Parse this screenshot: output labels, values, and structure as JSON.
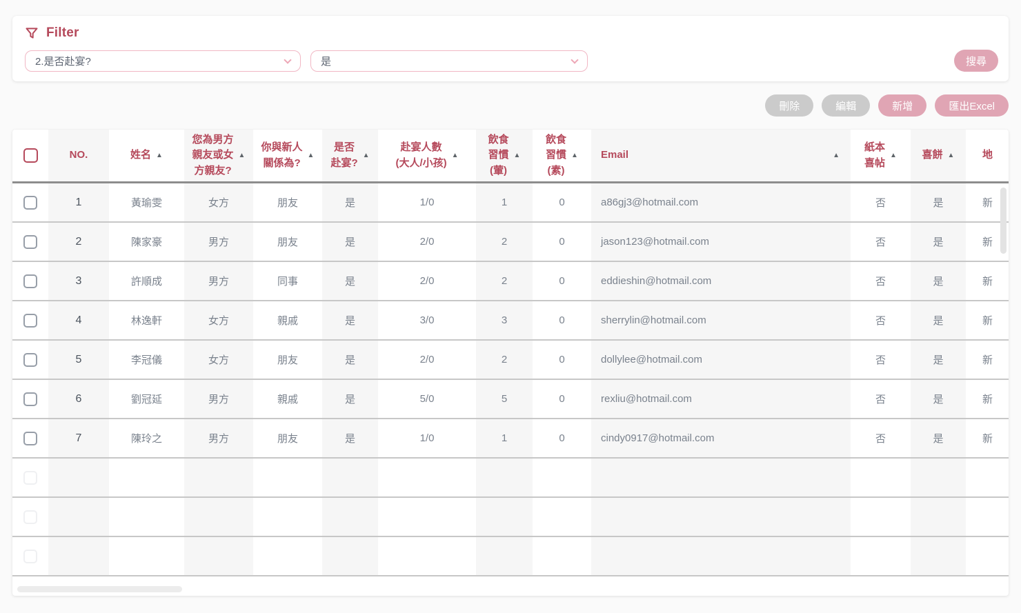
{
  "accent_colors": {
    "crimson": "#b5495b",
    "pink_button": "#e0a5b4",
    "pink_border": "#f1b7c4",
    "gray_button": "#cbcbcb"
  },
  "icons": {
    "filter": "funnel-icon",
    "sort_asc": "▲",
    "chevron": "chevron-down-icon"
  },
  "filter": {
    "title": "Filter",
    "field_select": {
      "value": "2.是否赴宴?"
    },
    "value_select": {
      "value": "是"
    },
    "search_label": "搜尋"
  },
  "toolbar": {
    "delete_label": "刪除",
    "edit_label": "編輯",
    "add_label": "新增",
    "export_label": "匯出Excel"
  },
  "table": {
    "columns": [
      {
        "key": "no",
        "label": "NO.",
        "sortable": false
      },
      {
        "key": "name",
        "label": "姓名",
        "sortable": true
      },
      {
        "key": "side",
        "label": "您為男方\n親友或女\n方親友?",
        "sortable": true
      },
      {
        "key": "relation",
        "label": "你與新人\n關係為?",
        "sortable": true
      },
      {
        "key": "attend",
        "label": "是否\n赴宴?",
        "sortable": true
      },
      {
        "key": "guests",
        "label": "赴宴人數\n(大人/小孩)",
        "sortable": true
      },
      {
        "key": "meat",
        "label": "飲食\n習慣\n(葷)",
        "sortable": true
      },
      {
        "key": "veg",
        "label": "飲食\n習慣\n(素)",
        "sortable": true
      },
      {
        "key": "email",
        "label": "Email",
        "sortable": true
      },
      {
        "key": "invite",
        "label": "紙本\n喜帖",
        "sortable": true
      },
      {
        "key": "cake",
        "label": "喜餅",
        "sortable": true
      },
      {
        "key": "address",
        "label": "地",
        "sortable": false
      }
    ],
    "rows": [
      {
        "no": "1",
        "name": "黃瑜雯",
        "side": "女方",
        "relation": "朋友",
        "attend": "是",
        "guests": "1/0",
        "meat": "1",
        "veg": "0",
        "email": "a86gj3@hotmail.com",
        "invite": "否",
        "cake": "是",
        "address": "新"
      },
      {
        "no": "2",
        "name": "陳家豪",
        "side": "男方",
        "relation": "朋友",
        "attend": "是",
        "guests": "2/0",
        "meat": "2",
        "veg": "0",
        "email": "jason123@hotmail.com",
        "invite": "否",
        "cake": "是",
        "address": "新"
      },
      {
        "no": "3",
        "name": "許順成",
        "side": "男方",
        "relation": "同事",
        "attend": "是",
        "guests": "2/0",
        "meat": "2",
        "veg": "0",
        "email": "eddieshin@hotmail.com",
        "invite": "否",
        "cake": "是",
        "address": "新"
      },
      {
        "no": "4",
        "name": "林逸軒",
        "side": "女方",
        "relation": "親戚",
        "attend": "是",
        "guests": "3/0",
        "meat": "3",
        "veg": "0",
        "email": "sherrylin@hotmail.com",
        "invite": "否",
        "cake": "是",
        "address": "新"
      },
      {
        "no": "5",
        "name": "李冠儀",
        "side": "女方",
        "relation": "朋友",
        "attend": "是",
        "guests": "2/0",
        "meat": "2",
        "veg": "0",
        "email": "dollylee@hotmail.com",
        "invite": "否",
        "cake": "是",
        "address": "新"
      },
      {
        "no": "6",
        "name": "劉冠延",
        "side": "男方",
        "relation": "親戚",
        "attend": "是",
        "guests": "5/0",
        "meat": "5",
        "veg": "0",
        "email": "rexliu@hotmail.com",
        "invite": "否",
        "cake": "是",
        "address": "新"
      },
      {
        "no": "7",
        "name": "陳玲之",
        "side": "男方",
        "relation": "朋友",
        "attend": "是",
        "guests": "1/0",
        "meat": "1",
        "veg": "0",
        "email": "cindy0917@hotmail.com",
        "invite": "否",
        "cake": "是",
        "address": "新"
      }
    ],
    "empty_row_count": 3
  }
}
